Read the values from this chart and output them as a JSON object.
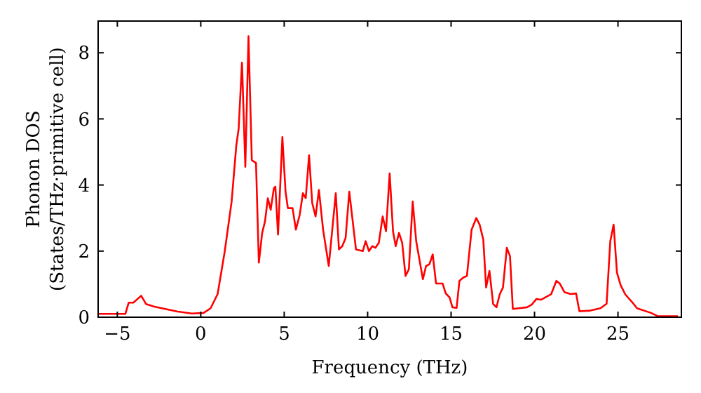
{
  "chart_data": {
    "type": "line",
    "xlabel": "Frequency (THz)",
    "ylabel": "Phonon DOS\n(States/THz·primitive cell)",
    "xlim": [
      -6.15,
      28.8
    ],
    "ylim": [
      0,
      8.96
    ],
    "xticks": [
      {
        "value": -5,
        "label": "−5"
      },
      0,
      5,
      10,
      15,
      20,
      25
    ],
    "yticks": [
      0,
      2,
      4,
      6,
      8
    ],
    "grid": false,
    "series": [
      {
        "color": "#ff0000",
        "x": [
          -6.15,
          -4.52,
          -4.32,
          -4.04,
          -3.57,
          -3.28,
          -2.78,
          -1.38,
          -0.53,
          0.17,
          0.59,
          1.01,
          1.43,
          1.85,
          2.13,
          2.27,
          2.47,
          2.67,
          2.86,
          3.06,
          3.31,
          3.48,
          3.68,
          3.85,
          4.02,
          4.19,
          4.38,
          4.47,
          4.63,
          4.89,
          5.08,
          5.22,
          5.5,
          5.7,
          5.93,
          6.12,
          6.29,
          6.49,
          6.68,
          6.88,
          7.08,
          7.33,
          7.67,
          8.09,
          8.28,
          8.48,
          8.68,
          8.9,
          9.3,
          9.71,
          9.88,
          10.08,
          10.28,
          10.47,
          10.67,
          10.9,
          11.1,
          11.32,
          11.52,
          11.68,
          11.88,
          12.07,
          12.27,
          12.47,
          12.7,
          12.91,
          13.31,
          13.5,
          13.7,
          13.9,
          14.1,
          14.49,
          14.68,
          14.91,
          15.08,
          15.33,
          15.5,
          15.73,
          15.95,
          16.23,
          16.51,
          16.71,
          16.93,
          17.1,
          17.3,
          17.52,
          17.72,
          17.92,
          18.11,
          18.34,
          18.53,
          18.7,
          19.55,
          19.83,
          20.11,
          20.39,
          21.0,
          21.31,
          21.51,
          21.79,
          22.16,
          22.49,
          22.69,
          23.34,
          23.95,
          24.32,
          24.54,
          24.74,
          24.94,
          25.16,
          25.44,
          25.86,
          26.14,
          26.98,
          27.4,
          28.6
        ],
        "values": [
          0.1,
          0.1,
          0.44,
          0.44,
          0.65,
          0.4,
          0.32,
          0.17,
          0.11,
          0.13,
          0.27,
          0.7,
          1.97,
          3.5,
          5.2,
          5.7,
          7.7,
          4.55,
          8.5,
          4.75,
          4.67,
          1.65,
          2.55,
          2.9,
          3.6,
          3.25,
          3.9,
          3.95,
          2.5,
          5.45,
          3.8,
          3.3,
          3.3,
          2.65,
          3.1,
          3.75,
          3.6,
          4.9,
          3.45,
          3.05,
          3.85,
          2.65,
          1.55,
          3.75,
          2.05,
          2.15,
          2.4,
          3.8,
          2.05,
          2.0,
          2.3,
          2.0,
          2.15,
          2.1,
          2.25,
          3.05,
          2.6,
          4.35,
          2.6,
          2.15,
          2.55,
          2.25,
          1.25,
          1.45,
          3.5,
          2.3,
          1.15,
          1.55,
          1.6,
          1.9,
          1.02,
          1.02,
          0.72,
          0.6,
          0.3,
          0.28,
          1.1,
          1.2,
          1.25,
          2.65,
          3.0,
          2.8,
          2.35,
          0.9,
          1.4,
          0.4,
          0.3,
          0.7,
          0.9,
          2.1,
          1.85,
          0.25,
          0.3,
          0.38,
          0.55,
          0.53,
          0.7,
          1.1,
          1.02,
          0.76,
          0.7,
          0.72,
          0.18,
          0.2,
          0.27,
          0.41,
          2.3,
          2.8,
          1.35,
          0.97,
          0.69,
          0.45,
          0.27,
          0.13,
          0.03,
          0.03
        ]
      }
    ]
  }
}
